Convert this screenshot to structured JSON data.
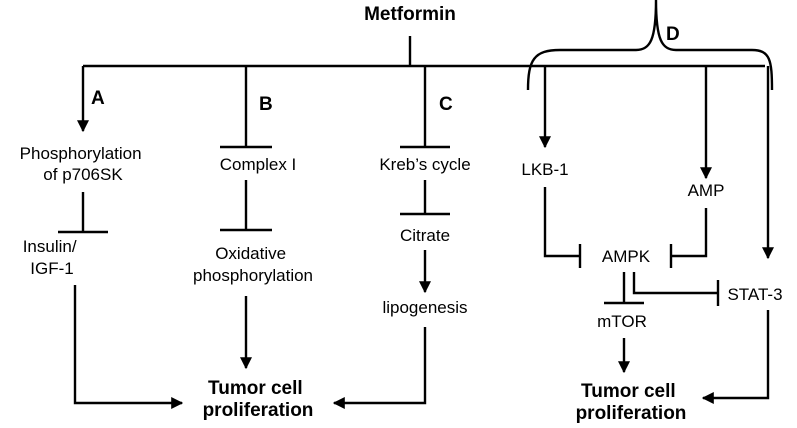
{
  "title": "Metformin",
  "branches": {
    "a": {
      "letter": "A",
      "node1": [
        "Phosphorylation",
        "of p706SK"
      ],
      "node2": [
        "Insulin/",
        "IGF-1"
      ]
    },
    "b": {
      "letter": "B",
      "node1": [
        "Complex I"
      ],
      "node2": [
        "Oxidative",
        "phosphorylation"
      ]
    },
    "c": {
      "letter": "C",
      "node1": [
        "Kreb’s cycle"
      ],
      "node2": [
        "Citrate"
      ],
      "node3": [
        "lipogenesis"
      ]
    },
    "d": {
      "letter": "D",
      "lkb1": "LKB-1",
      "amp": "AMP",
      "ampk": "AMPK",
      "mtor": "mTOR",
      "stat3": "STAT-3"
    }
  },
  "outcome_left": [
    "Tumor cell",
    "proliferation"
  ],
  "outcome_right": [
    "Tumor cell",
    "proliferation"
  ]
}
